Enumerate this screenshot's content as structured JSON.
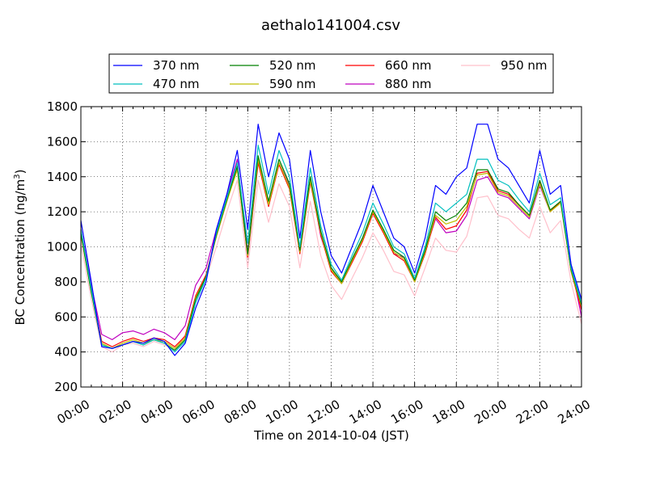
{
  "chart_data": {
    "type": "line",
    "title": "aethalo141004.csv",
    "xlabel": "Time on 2014-10-04 (JST)",
    "ylabel_main": "BC Concentration (ng/m",
    "ylabel_sup": "3",
    "ylabel_close": ")",
    "xlim": [
      0,
      24
    ],
    "ylim": [
      200,
      1800
    ],
    "grid": true,
    "legend_position": "top-center",
    "x_ticks": [
      0,
      2,
      4,
      6,
      8,
      10,
      12,
      14,
      16,
      18,
      20,
      22,
      24
    ],
    "x_tick_labels": [
      "00:00",
      "02:00",
      "04:00",
      "06:00",
      "08:00",
      "10:00",
      "12:00",
      "14:00",
      "16:00",
      "18:00",
      "20:00",
      "22:00",
      "24:00"
    ],
    "y_ticks": [
      200,
      400,
      600,
      800,
      1000,
      1200,
      1400,
      1600,
      1800
    ],
    "y_tick_labels": [
      "200",
      "400",
      "600",
      "800",
      "1000",
      "1200",
      "1400",
      "1600",
      "1800"
    ],
    "x": [
      0.0,
      0.5,
      1.0,
      1.5,
      2.0,
      2.5,
      3.0,
      3.5,
      4.0,
      4.5,
      5.0,
      5.5,
      6.0,
      6.5,
      7.0,
      7.5,
      8.0,
      8.5,
      9.0,
      9.5,
      10.0,
      10.5,
      11.0,
      11.5,
      12.0,
      12.5,
      13.0,
      13.5,
      14.0,
      14.5,
      15.0,
      15.5,
      16.0,
      16.5,
      17.0,
      17.5,
      18.0,
      18.5,
      19.0,
      19.5,
      20.0,
      20.5,
      21.0,
      21.5,
      22.0,
      22.5,
      23.0,
      23.5,
      24.0
    ],
    "series": [
      {
        "name": "370 nm",
        "color": "#0000ff",
        "values": [
          1150,
          800,
          430,
          420,
          440,
          460,
          450,
          480,
          460,
          380,
          450,
          650,
          800,
          1100,
          1300,
          1550,
          1100,
          1700,
          1400,
          1650,
          1500,
          1050,
          1550,
          1200,
          950,
          850,
          1000,
          1150,
          1350,
          1200,
          1050,
          1000,
          850,
          1050,
          1350,
          1300,
          1400,
          1450,
          1700,
          1700,
          1500,
          1450,
          1350,
          1250,
          1550,
          1300,
          1350,
          900,
          700
        ]
      },
      {
        "name": "470 nm",
        "color": "#00bfbf",
        "values": [
          1100,
          760,
          440,
          420,
          440,
          460,
          440,
          470,
          450,
          400,
          460,
          680,
          820,
          1080,
          1280,
          1480,
          1020,
          1580,
          1300,
          1550,
          1400,
          1000,
          1450,
          1120,
          900,
          810,
          950,
          1080,
          1250,
          1130,
          1000,
          960,
          820,
          1000,
          1250,
          1200,
          1250,
          1300,
          1500,
          1500,
          1380,
          1350,
          1270,
          1200,
          1420,
          1240,
          1280,
          880,
          680
        ]
      },
      {
        "name": "520 nm",
        "color": "#008000",
        "values": [
          1080,
          740,
          440,
          420,
          440,
          460,
          440,
          470,
          450,
          410,
          470,
          700,
          830,
          1070,
          1270,
          1460,
          960,
          1520,
          1260,
          1500,
          1360,
          980,
          1400,
          1090,
          880,
          800,
          930,
          1050,
          1210,
          1100,
          980,
          940,
          810,
          980,
          1200,
          1150,
          1180,
          1250,
          1440,
          1440,
          1330,
          1310,
          1240,
          1180,
          1380,
          1210,
          1260,
          870,
          670
        ]
      },
      {
        "name": "590 nm",
        "color": "#bfbf00",
        "values": [
          1070,
          740,
          450,
          420,
          450,
          470,
          450,
          470,
          460,
          420,
          480,
          710,
          830,
          1060,
          1260,
          1440,
          950,
          1500,
          1240,
          1480,
          1340,
          970,
          1380,
          1080,
          870,
          790,
          920,
          1040,
          1200,
          1090,
          970,
          930,
          800,
          970,
          1180,
          1130,
          1150,
          1230,
          1410,
          1420,
          1310,
          1290,
          1230,
          1170,
          1360,
          1200,
          1250,
          860,
          660
        ]
      },
      {
        "name": "660 nm",
        "color": "#ff0000",
        "values": [
          1070,
          750,
          460,
          430,
          460,
          480,
          460,
          480,
          470,
          430,
          490,
          720,
          840,
          1060,
          1260,
          1450,
          940,
          1480,
          1230,
          1470,
          1330,
          960,
          1370,
          1070,
          860,
          790,
          910,
          1030,
          1190,
          1080,
          960,
          920,
          800,
          960,
          1170,
          1100,
          1120,
          1210,
          1420,
          1430,
          1320,
          1300,
          1240,
          1180,
          1370,
          1200,
          1260,
          860,
          640
        ]
      },
      {
        "name": "880 nm",
        "color": "#bf00bf",
        "values": [
          1100,
          780,
          500,
          470,
          510,
          520,
          500,
          530,
          510,
          470,
          550,
          780,
          880,
          1100,
          1300,
          1500,
          970,
          1500,
          1260,
          1480,
          1350,
          990,
          1390,
          1060,
          880,
          800,
          920,
          1050,
          1200,
          1090,
          960,
          940,
          800,
          970,
          1160,
          1080,
          1090,
          1180,
          1380,
          1400,
          1300,
          1280,
          1220,
          1160,
          1350,
          1200,
          1260,
          900,
          600
        ]
      },
      {
        "name": "950 nm",
        "color": "#ffc0cb",
        "values": [
          1020,
          700,
          430,
          400,
          440,
          450,
          430,
          460,
          440,
          410,
          500,
          700,
          820,
          1000,
          1200,
          1380,
          880,
          1380,
          1140,
          1360,
          1230,
          880,
          1260,
          950,
          780,
          700,
          820,
          940,
          1080,
          980,
          860,
          840,
          720,
          880,
          1050,
          980,
          970,
          1060,
          1280,
          1290,
          1180,
          1160,
          1100,
          1050,
          1230,
          1080,
          1150,
          800,
          560
        ]
      }
    ]
  }
}
